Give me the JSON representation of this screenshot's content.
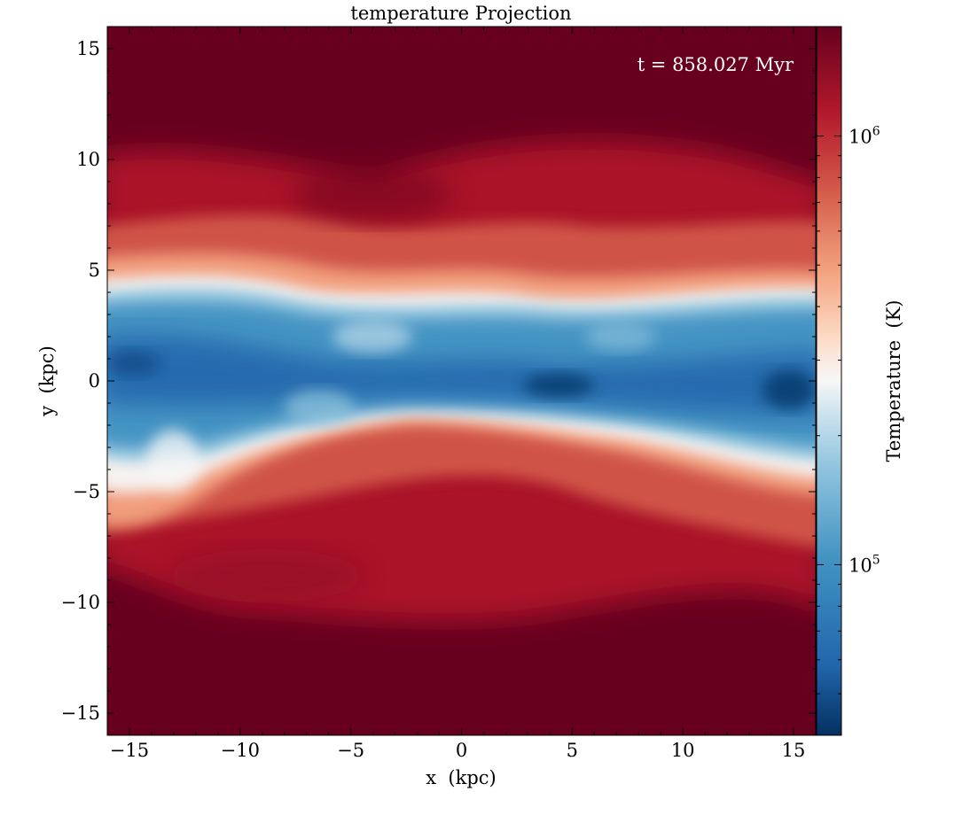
{
  "title": "temperature Projection",
  "timestamp": "t = 858.027 Myr",
  "x_axis": {
    "label": "x  (kpc)",
    "range": [
      -16,
      16
    ],
    "ticks": [
      {
        "value": -15,
        "label": "−15"
      },
      {
        "value": -10,
        "label": "−10"
      },
      {
        "value": -5,
        "label": "−5"
      },
      {
        "value": 0,
        "label": "0"
      },
      {
        "value": 5,
        "label": "5"
      },
      {
        "value": 10,
        "label": "10"
      },
      {
        "value": 15,
        "label": "15"
      }
    ]
  },
  "y_axis": {
    "label": "y  (kpc)",
    "range": [
      -16,
      16
    ],
    "ticks": [
      {
        "value": 15,
        "label": "15"
      },
      {
        "value": 10,
        "label": "10"
      },
      {
        "value": 5,
        "label": "5"
      },
      {
        "value": 0,
        "label": "0"
      },
      {
        "value": -5,
        "label": "−5"
      },
      {
        "value": -10,
        "label": "−10"
      },
      {
        "value": -15,
        "label": "−15"
      }
    ]
  },
  "colorbar": {
    "label": "Temperature  (K)",
    "scale": "log",
    "range": [
      40000,
      1800000
    ],
    "colormap": "RdBu_r",
    "ticks": [
      {
        "value": 1000000,
        "base": "10",
        "exp": "6"
      },
      {
        "value": 100000,
        "base": "10",
        "exp": "5"
      }
    ]
  },
  "colors": {
    "hot": "#67001f",
    "warm": "#b2182b",
    "mid": "#f7f7f7",
    "cool": "#2166ac",
    "cold": "#053061"
  }
}
